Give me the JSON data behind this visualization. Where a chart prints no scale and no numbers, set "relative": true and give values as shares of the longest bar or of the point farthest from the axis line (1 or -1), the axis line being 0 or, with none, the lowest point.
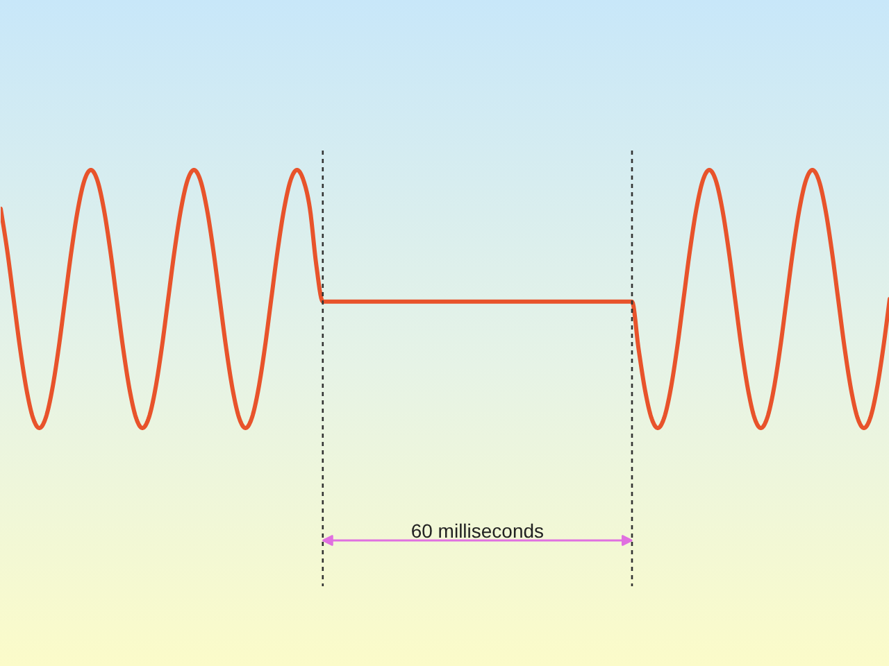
{
  "chart_data": {
    "type": "line",
    "relative": true,
    "categories": [
      null,
      null,
      null,
      null,
      null,
      null,
      null,
      null,
      null,
      null,
      null,
      null,
      null,
      null,
      null,
      null,
      null,
      null,
      null,
      null,
      null,
      null,
      null,
      null,
      null,
      null,
      null,
      null,
      null,
      null,
      null,
      null,
      null,
      null,
      null,
      null,
      null,
      null,
      null,
      null,
      null,
      null,
      null,
      null,
      null,
      null,
      null,
      null,
      null,
      null,
      null,
      null,
      null,
      null,
      null,
      null,
      null,
      null,
      null,
      null,
      null,
      null,
      null,
      null,
      null,
      null,
      null,
      null,
      null,
      null,
      null,
      null,
      null,
      null,
      null,
      null,
      null,
      null,
      null,
      null,
      null,
      null,
      null,
      null,
      null,
      null,
      null,
      null,
      null,
      null,
      null,
      null,
      null,
      null,
      null,
      null,
      null,
      null,
      null,
      null,
      null,
      null,
      null,
      null,
      null,
      null,
      null,
      null,
      null,
      null,
      null,
      null,
      null,
      null,
      null,
      null,
      null,
      null,
      null,
      null,
      null,
      null,
      null,
      null,
      null,
      null,
      null,
      null,
      null,
      null,
      null,
      null,
      null,
      null,
      null,
      null,
      null,
      null,
      null
    ],
    "series": [
      {
        "color": "#e8532b",
        "values": [
          0.85,
          0.69,
          0.5,
          0.31,
          0.15,
          0.04,
          0,
          0.04,
          0.15,
          0.31,
          0.5,
          0.69,
          0.85,
          0.96,
          1,
          0.96,
          0.85,
          0.69,
          0.5,
          0.31,
          0.15,
          0.04,
          0,
          0.04,
          0.15,
          0.31,
          0.5,
          0.69,
          0.85,
          0.96,
          1,
          0.96,
          0.85,
          0.69,
          0.5,
          0.31,
          0.15,
          0.04,
          0,
          0.04,
          0.15,
          0.31,
          0.5,
          0.69,
          0.85,
          0.96,
          1,
          0.96,
          0.85,
          0.63,
          0.49,
          0.49,
          0.49,
          0.49,
          0.49,
          0.49,
          0.49,
          0.49,
          0.49,
          0.49,
          0.49,
          0.49,
          0.49,
          0.49,
          0.49,
          0.49,
          0.49,
          0.49,
          0.49,
          0.49,
          0.49,
          0.49,
          0.49,
          0.49,
          0.49,
          0.49,
          0.49,
          0.49,
          0.49,
          0.49,
          0.49,
          0.49,
          0.49,
          0.49,
          0.49,
          0.49,
          0.49,
          0.49,
          0.49,
          0.49,
          0.49,
          0.49,
          0.49,
          0.49,
          0.49,
          0.49,
          0.49,
          0.49,
          0.49,
          0.31,
          0.15,
          0.04,
          0,
          0.04,
          0.15,
          0.31,
          0.5,
          0.69,
          0.85,
          0.96,
          1,
          0.96,
          0.85,
          0.69,
          0.5,
          0.31,
          0.15,
          0.04,
          0,
          0.04,
          0.15,
          0.31,
          0.5,
          0.69,
          0.85,
          0.96,
          1,
          0.96,
          0.85,
          0.69,
          0.5,
          0.31,
          0.15,
          0.04,
          0,
          0.04,
          0.15,
          0.31,
          0.5
        ]
      }
    ],
    "annotations": [
      "60 milliseconds"
    ]
  }
}
